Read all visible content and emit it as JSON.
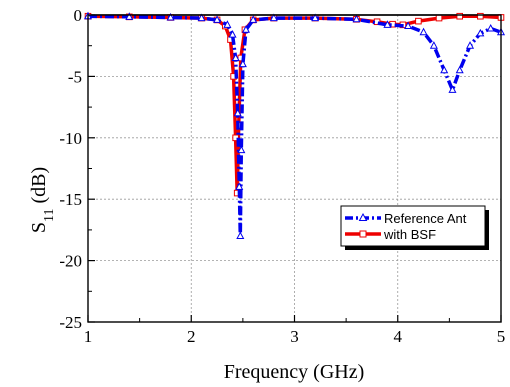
{
  "chart_data": {
    "type": "line",
    "xlabel": "Frequency (GHz)",
    "ylabel_main": "S",
    "ylabel_sub": "11",
    "ylabel_unit": " (dB)",
    "xlim": [
      1,
      5
    ],
    "ylim": [
      -25,
      0
    ],
    "x_ticks": [
      "1",
      "2",
      "3",
      "4",
      "5"
    ],
    "y_ticks": [
      "0",
      "-5",
      "-10",
      "-15",
      "-20",
      "-25"
    ],
    "grid": true,
    "legend_position": "lower-right",
    "series": [
      {
        "name": "Reference Ant",
        "color": "#0000ee",
        "style": "dash-dot",
        "marker": "triangle",
        "points": [
          [
            1.0,
            -0.1
          ],
          [
            1.4,
            -0.15
          ],
          [
            1.8,
            -0.2
          ],
          [
            2.1,
            -0.25
          ],
          [
            2.25,
            -0.4
          ],
          [
            2.35,
            -0.8
          ],
          [
            2.4,
            -1.6
          ],
          [
            2.43,
            -3.5
          ],
          [
            2.45,
            -8
          ],
          [
            2.465,
            -14
          ],
          [
            2.475,
            -18
          ],
          [
            2.485,
            -11
          ],
          [
            2.5,
            -4
          ],
          [
            2.53,
            -1.2
          ],
          [
            2.6,
            -0.4
          ],
          [
            2.8,
            -0.25
          ],
          [
            3.2,
            -0.25
          ],
          [
            3.6,
            -0.35
          ],
          [
            3.9,
            -0.8
          ],
          [
            4.1,
            -0.9
          ],
          [
            4.25,
            -1.4
          ],
          [
            4.35,
            -2.5
          ],
          [
            4.45,
            -4.5
          ],
          [
            4.53,
            -6.1
          ],
          [
            4.6,
            -4.5
          ],
          [
            4.7,
            -2.5
          ],
          [
            4.8,
            -1.5
          ],
          [
            4.9,
            -1.1
          ],
          [
            5.0,
            -1.4
          ]
        ]
      },
      {
        "name": "with BSF",
        "color": "#ee0000",
        "style": "solid",
        "marker": "square",
        "points": [
          [
            1.0,
            -0.1
          ],
          [
            1.4,
            -0.15
          ],
          [
            1.8,
            -0.2
          ],
          [
            2.1,
            -0.25
          ],
          [
            2.25,
            -0.4
          ],
          [
            2.33,
            -0.9
          ],
          [
            2.38,
            -2
          ],
          [
            2.41,
            -5
          ],
          [
            2.43,
            -10
          ],
          [
            2.445,
            -14.5
          ],
          [
            2.46,
            -9
          ],
          [
            2.48,
            -3.5
          ],
          [
            2.52,
            -1.2
          ],
          [
            2.6,
            -0.4
          ],
          [
            2.8,
            -0.25
          ],
          [
            3.2,
            -0.25
          ],
          [
            3.6,
            -0.35
          ],
          [
            3.8,
            -0.55
          ],
          [
            3.95,
            -0.75
          ],
          [
            4.05,
            -0.8
          ],
          [
            4.2,
            -0.5
          ],
          [
            4.4,
            -0.25
          ],
          [
            4.6,
            -0.1
          ],
          [
            4.8,
            -0.1
          ],
          [
            5.0,
            -0.2
          ]
        ]
      }
    ]
  }
}
